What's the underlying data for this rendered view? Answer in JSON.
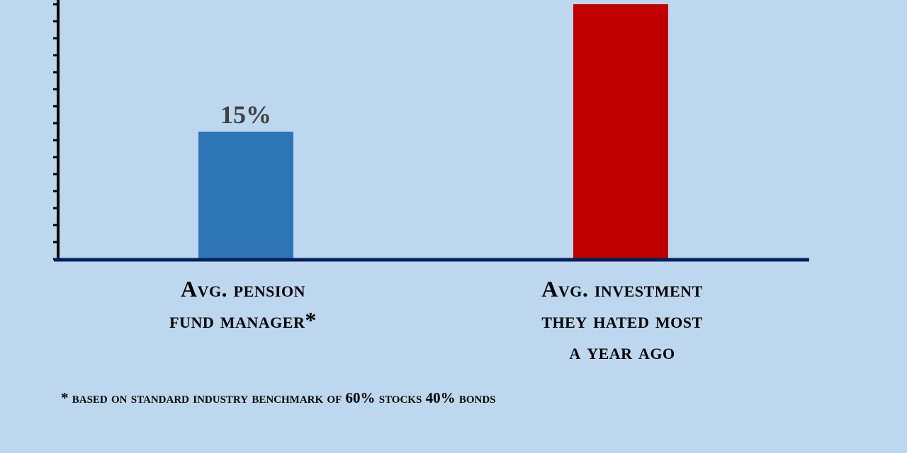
{
  "chart_data": {
    "type": "bar",
    "categories": [
      "Avg. pension fund manager*",
      "Avg. investment they hated most a year ago"
    ],
    "category_lines": [
      [
        "Avg. pension",
        "fund manager*"
      ],
      [
        "Avg. investment",
        "they hated most",
        "a year ago"
      ]
    ],
    "values": [
      15,
      30
    ],
    "value_labels": [
      "15%",
      ""
    ],
    "colors": [
      "#2e75b6",
      "#c00000"
    ],
    "ylim": [
      0,
      30
    ],
    "y_tick_step": 2,
    "title": "",
    "xlabel": "",
    "ylabel": "",
    "footnote": "* based on standard industry benchmark of 60% stocks 40% bonds"
  },
  "colors": {
    "background": "#bdd7ee",
    "axis": "#002060",
    "value_label": "#404040"
  }
}
